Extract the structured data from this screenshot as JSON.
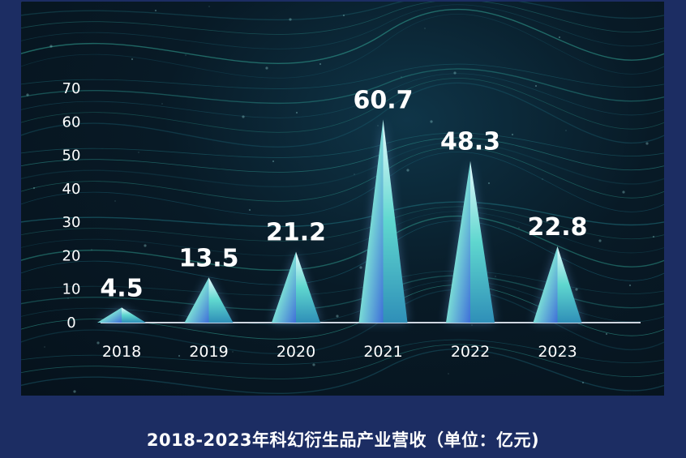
{
  "caption": "2018-2023年科幻衍生品产业营收（单位：亿元)",
  "colors": {
    "page_background": "#1c2d63",
    "bar_light": "#ffffff",
    "bar_mid": "#66e0d0",
    "bar_dark": "#3f6fd8",
    "text": "#ffffff"
  },
  "chart_data": {
    "type": "bar",
    "categories": [
      "2018",
      "2019",
      "2020",
      "2021",
      "2022",
      "2023"
    ],
    "values": [
      4.5,
      13.5,
      21.2,
      60.7,
      48.3,
      22.8
    ],
    "value_labels": [
      "4.5",
      "13.5",
      "21.2",
      "60.7",
      "48.3",
      "22.8"
    ],
    "ylim": [
      0,
      70
    ],
    "yticks": [
      "0",
      "10",
      "20",
      "30",
      "40",
      "50",
      "60",
      "70"
    ],
    "ytick_values": [
      0,
      10,
      20,
      30,
      40,
      50,
      60,
      70
    ],
    "bar_style": "cone",
    "grid": false,
    "legend": "none"
  }
}
